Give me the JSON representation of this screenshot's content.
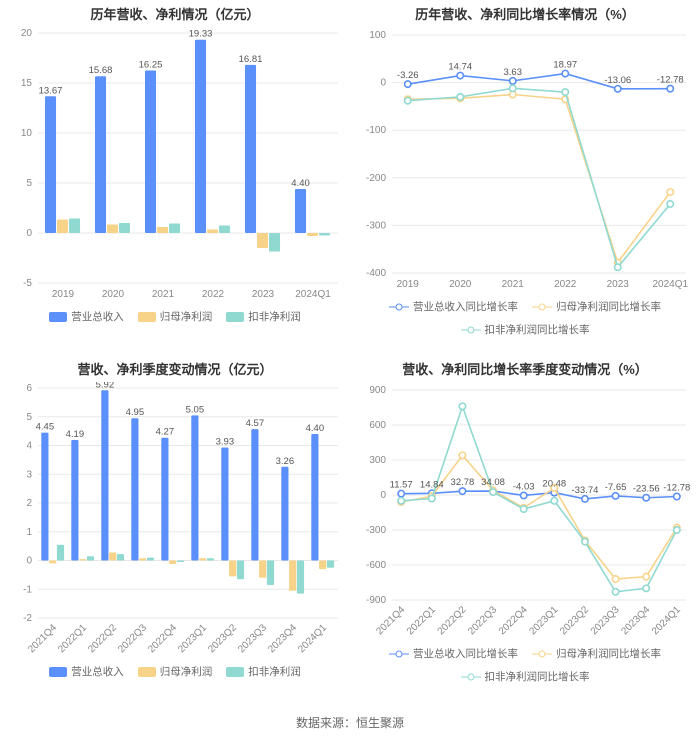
{
  "source_label": "数据来源：恒生聚源",
  "colors": {
    "revenue": "#5b8ff9",
    "net_profit": "#f7d38a",
    "deducted_profit": "#8fd9d0",
    "grid": "#e8e8e8",
    "axis": "#d0d0d0",
    "text_axis": "#888888",
    "text_title": "#333333",
    "text_label": "#555555",
    "background": "#ffffff"
  },
  "series_names": {
    "revenue": "营业总收入",
    "net_profit": "归母净利润",
    "deducted_profit": "扣非净利润",
    "revenue_yoy": "营业总收入同比增长率",
    "net_profit_yoy": "归母净利润同比增长率",
    "deducted_profit_yoy": "扣非净利润同比增长率"
  },
  "panel_tl": {
    "title": "历年营收、净利情况（亿元）",
    "type": "bar",
    "categories": [
      "2019",
      "2020",
      "2021",
      "2022",
      "2023",
      "2024Q1"
    ],
    "revenue": [
      13.67,
      15.68,
      16.25,
      19.33,
      16.81,
      4.4
    ],
    "net_profit": [
      1.35,
      0.85,
      0.6,
      0.35,
      -1.5,
      -0.3
    ],
    "deducted_profit": [
      1.45,
      1.0,
      0.95,
      0.75,
      -1.85,
      -0.25
    ],
    "bar_labels": [
      "13.67",
      "15.68",
      "16.25",
      "19.33",
      "16.81",
      "4.40"
    ],
    "ylim": [
      -5,
      20
    ],
    "ytick_step": 5,
    "bar_group_width": 0.72
  },
  "panel_tr": {
    "title": "历年营收、净利同比增长率情况（%）",
    "type": "line",
    "categories": [
      "2019",
      "2020",
      "2021",
      "2022",
      "2023",
      "2024Q1"
    ],
    "revenue_yoy": [
      -3.26,
      14.74,
      3.63,
      18.97,
      -13.06,
      -12.78
    ],
    "net_profit_yoy": [
      -35,
      -33,
      -25,
      -35,
      -378,
      -230
    ],
    "deducted_profit_yoy": [
      -38,
      -30,
      -12,
      -20,
      -388,
      -255
    ],
    "point_labels": [
      "-3.26",
      "14.74",
      "3.63",
      "18.97",
      "-13.06",
      "-12.78"
    ],
    "ylim": [
      -400,
      100
    ],
    "ytick_step": 100
  },
  "panel_bl": {
    "title": "营收、净利季度变动情况（亿元）",
    "type": "bar",
    "categories": [
      "2021Q4",
      "2022Q1",
      "2022Q2",
      "2022Q3",
      "2022Q4",
      "2023Q1",
      "2023Q2",
      "2023Q3",
      "2023Q4",
      "2024Q1"
    ],
    "revenue": [
      4.45,
      4.19,
      5.92,
      4.95,
      4.27,
      5.05,
      3.93,
      4.57,
      3.26,
      4.4
    ],
    "net_profit": [
      -0.1,
      0.05,
      0.28,
      0.08,
      -0.12,
      0.08,
      -0.55,
      -0.6,
      -1.05,
      -0.3
    ],
    "deducted_profit": [
      0.55,
      0.15,
      0.22,
      0.1,
      -0.05,
      0.08,
      -0.65,
      -0.85,
      -1.15,
      -0.25
    ],
    "bar_labels": [
      "4.45",
      "4.19",
      "5.92",
      "4.95",
      "4.27",
      "5.05",
      "3.93",
      "4.57",
      "3.26",
      "4.40"
    ],
    "ylim": [
      -2,
      6
    ],
    "ytick_step": 1,
    "bar_group_width": 0.78,
    "rotate_x": true
  },
  "panel_br": {
    "title": "营收、净利同比增长率季度变动情况（%）",
    "type": "line",
    "categories": [
      "2021Q4",
      "2022Q1",
      "2022Q2",
      "2022Q3",
      "2022Q4",
      "2023Q1",
      "2023Q2",
      "2023Q3",
      "2023Q4",
      "2024Q1"
    ],
    "revenue_yoy": [
      11.57,
      14.84,
      32.78,
      34.08,
      -4.03,
      20.48,
      -33.74,
      -7.65,
      -23.56,
      -12.78
    ],
    "net_profit_yoy": [
      -60,
      -10,
      340,
      40,
      -110,
      60,
      -390,
      -720,
      -700,
      -280
    ],
    "deducted_profit_yoy": [
      -50,
      -30,
      760,
      25,
      -120,
      -50,
      -400,
      -830,
      -800,
      -300
    ],
    "point_labels": [
      "11.57",
      "14.84",
      "32.78",
      "34.08",
      "-4.03",
      "20.48",
      "-33.74",
      "-7.65",
      "-23.56",
      "-12.78"
    ],
    "ylim": [
      -900,
      900
    ],
    "ytick_step": 300,
    "rotate_x": true
  }
}
